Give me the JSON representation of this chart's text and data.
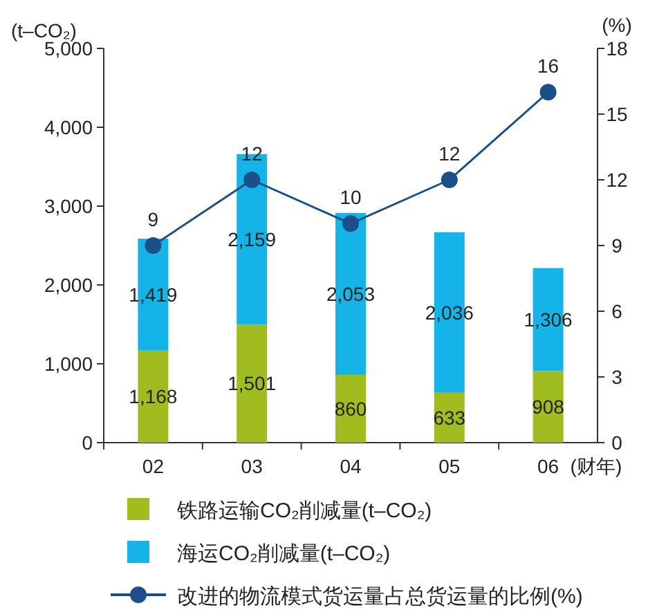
{
  "chart_data": {
    "type": "bar",
    "stacked": true,
    "ylabel": "(t–CO₂)",
    "y2label": "(%)",
    "xlabel": "(财年)",
    "categories": [
      "02",
      "03",
      "04",
      "05",
      "06"
    ],
    "series": [
      {
        "name": "铁路运输CO₂削减量(t–CO₂)",
        "color": "#a0bc1e",
        "values": [
          1168,
          1501,
          860,
          633,
          908
        ],
        "value_labels": [
          "1,168",
          "1,501",
          "860",
          "633",
          "908"
        ]
      },
      {
        "name": "海运CO₂削减量(t–CO₂)",
        "color": "#14b4e8",
        "values": [
          1419,
          2159,
          2053,
          2036,
          1306
        ],
        "value_labels": [
          "1,419",
          "2,159",
          "2,053",
          "2,036",
          "1,306"
        ]
      },
      {
        "name": "改进的物流模式货运量占总货运量的比例(%)",
        "type": "line",
        "axis": "y2",
        "color": "#1a4f8a",
        "marker": "circle",
        "values": [
          9,
          12,
          10,
          12,
          16
        ],
        "value_labels": [
          "9",
          "12",
          "10",
          "12",
          "16"
        ]
      }
    ],
    "ylim": [
      0,
      5000
    ],
    "yticks": [
      0,
      {
        "value": 1000,
        "label": "1,000"
      },
      {
        "value": 2000,
        "label": "2,000"
      },
      {
        "value": 3000,
        "label": "3,000"
      },
      {
        "value": 4000,
        "label": "4,000"
      },
      {
        "value": 5000,
        "label": "5,000"
      }
    ],
    "y2lim": [
      0,
      18
    ],
    "y2ticks": [
      0,
      3,
      6,
      9,
      12,
      15,
      18
    ],
    "legend": "bottom",
    "grid": false
  }
}
